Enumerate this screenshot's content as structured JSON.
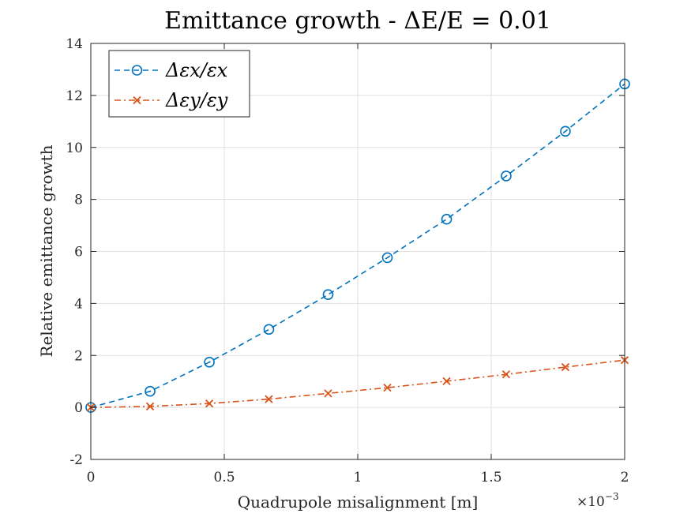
{
  "chart_data": {
    "type": "line",
    "title": "Emittance growth - ΔE/E = 0.01",
    "xlabel": "Quadrupole misalignment [m]",
    "ylabel": "Relative emittance growth",
    "x_exponent_label": "×10",
    "x_exponent_power": "−3",
    "xlim": [
      0,
      0.002
    ],
    "ylim": [
      -2,
      14
    ],
    "x_ticks": [
      0,
      0.0005,
      0.001,
      0.0015,
      0.002
    ],
    "x_tick_labels": [
      "0",
      "0.5",
      "1",
      "1.5",
      "2"
    ],
    "y_ticks": [
      -2,
      0,
      2,
      4,
      6,
      8,
      10,
      12,
      14
    ],
    "y_tick_labels": [
      "-2",
      "0",
      "2",
      "4",
      "6",
      "8",
      "10",
      "12",
      "14"
    ],
    "grid": true,
    "legend_position": "top-left",
    "x": [
      0,
      0.000222,
      0.000444,
      0.000667,
      0.000889,
      0.001111,
      0.001333,
      0.001556,
      0.001778,
      0.002
    ],
    "series": [
      {
        "name": "Δεx/εx",
        "color": "#0072BD",
        "marker": "circle",
        "line_style": "dashed",
        "values": [
          0.0,
          0.62,
          1.74,
          3.0,
          4.34,
          5.76,
          7.24,
          8.9,
          10.62,
          12.44
        ]
      },
      {
        "name": "Δεy/εy",
        "color": "#D95319",
        "marker": "x",
        "line_style": "dash-dot",
        "values": [
          0.0,
          0.04,
          0.15,
          0.32,
          0.54,
          0.76,
          1.01,
          1.27,
          1.55,
          1.82
        ]
      }
    ]
  }
}
